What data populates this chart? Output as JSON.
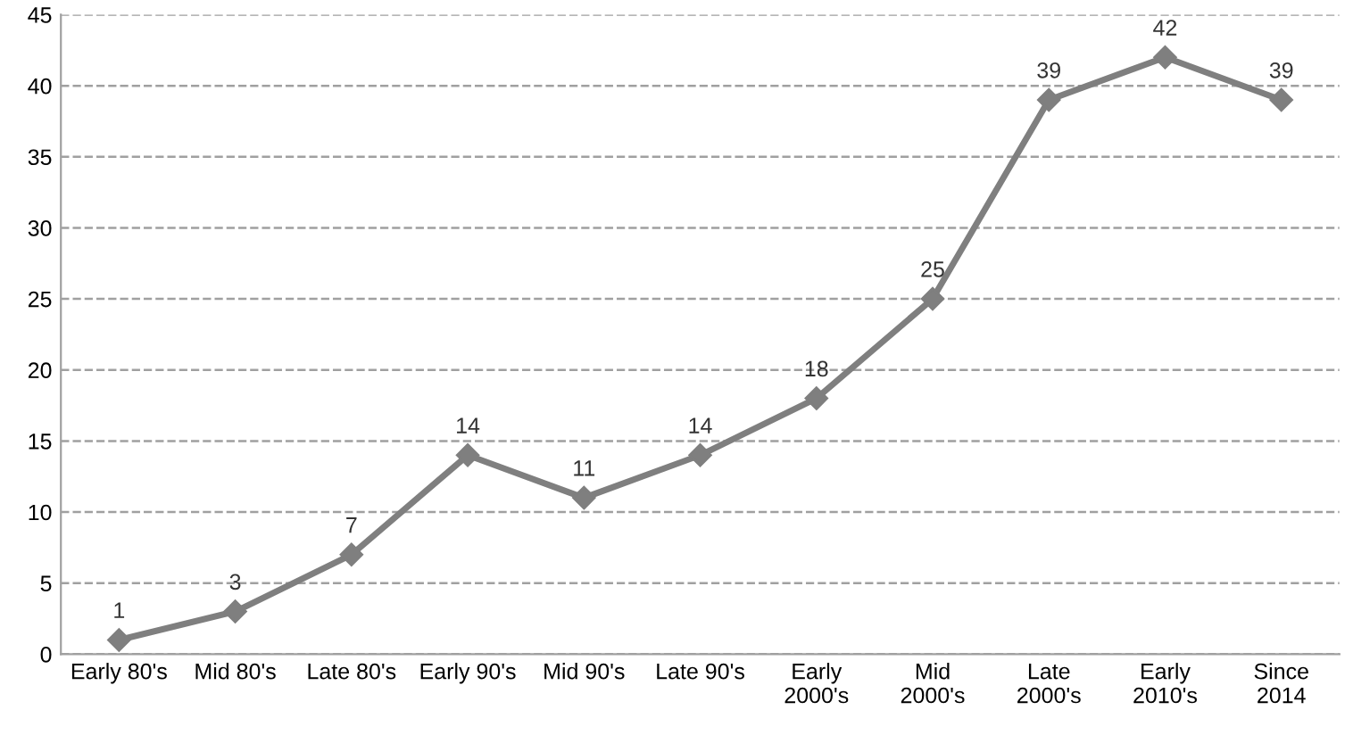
{
  "chart_data": {
    "type": "line",
    "categories": [
      "Early 80's",
      "Mid 80's",
      "Late 80's",
      "Early 90's",
      "Mid 90's",
      "Late 90's",
      "Early\n2000's",
      "Mid\n2000's",
      "Late\n2000's",
      "Early\n2010's",
      "Since\n2014"
    ],
    "series": [
      {
        "color": "#7f7f7f",
        "values": [
          1,
          3,
          7,
          14,
          11,
          14,
          18,
          25,
          39,
          42,
          39
        ]
      }
    ],
    "ylim": [
      0,
      45
    ],
    "yticks": [
      0,
      5,
      10,
      15,
      20,
      25,
      30,
      35,
      40,
      45
    ],
    "grid": "y",
    "marker": "diamond",
    "line_style": "solid",
    "data_labels": true,
    "legend": false
  }
}
